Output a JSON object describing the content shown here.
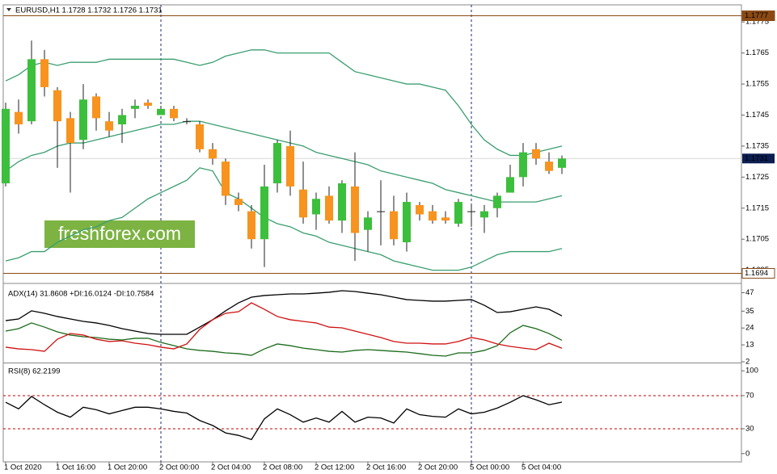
{
  "chart_data": [
    {
      "type": "candlestick",
      "title": "EURUSD,H1  1.1728 1.1732 1.1726 1.1731",
      "categories": [
        "1 Oct 2020",
        null,
        null,
        null,
        "1 Oct 16:00",
        null,
        null,
        null,
        "1 Oct 20:00",
        null,
        null,
        null,
        "2 Oct 00:00",
        null,
        null,
        null,
        "2 Oct 04:00",
        null,
        null,
        null,
        "2 Oct 08:00",
        null,
        null,
        null,
        "2 Oct 12:00",
        null,
        null,
        null,
        "2 Oct 16:00",
        null,
        null,
        null,
        "2 Oct 20:00",
        null,
        null,
        null,
        "5 Oct 00:00",
        null,
        null,
        null,
        "5 Oct 04:00",
        null,
        null,
        null
      ],
      "open": [
        1.1723,
        1.1746,
        1.1743,
        1.1763,
        1.1753,
        1.1744,
        1.1737,
        1.1751,
        1.1743,
        1.1742,
        1.1747,
        1.1749,
        1.1745,
        1.1747,
        1.1743,
        1.1742,
        1.1734,
        1.173,
        1.1718,
        1.1714,
        1.1705,
        1.1723,
        1.1735,
        1.1721,
        1.1713,
        1.1719,
        1.1711,
        1.1722,
        1.1708,
        1.1714,
        1.1714,
        1.1704,
        1.1716,
        1.1714,
        1.1712,
        1.171,
        1.1714,
        1.1712,
        1.1715,
        1.172,
        1.1725,
        1.1734,
        1.173,
        1.1728
      ],
      "high": [
        1.1749,
        1.175,
        1.1769,
        1.1766,
        1.1754,
        1.1746,
        1.1755,
        1.1752,
        1.1746,
        1.1747,
        1.175,
        1.175,
        1.1748,
        1.1748,
        1.1744,
        1.1743,
        1.1736,
        1.1731,
        1.172,
        1.1716,
        1.1729,
        1.1737,
        1.174,
        1.173,
        1.172,
        1.1722,
        1.1724,
        1.1733,
        1.1714,
        1.1724,
        1.1719,
        1.172,
        1.1717,
        1.1716,
        1.1714,
        1.1718,
        1.1716,
        1.1716,
        1.172,
        1.1729,
        1.1736,
        1.1736,
        1.1733,
        1.1732
      ],
      "low": [
        1.1722,
        1.1739,
        1.1742,
        1.1751,
        1.1728,
        1.172,
        1.1734,
        1.174,
        1.1738,
        1.1736,
        1.1744,
        1.1747,
        1.1745,
        1.1743,
        1.1742,
        1.1733,
        1.1729,
        1.1716,
        1.1714,
        1.1702,
        1.1696,
        1.172,
        1.1719,
        1.171,
        1.1708,
        1.171,
        1.1707,
        1.1698,
        1.1701,
        1.1703,
        1.1703,
        1.1701,
        1.1711,
        1.171,
        1.171,
        1.1709,
        1.1709,
        1.1707,
        1.1712,
        1.172,
        1.1722,
        1.1729,
        1.1726,
        1.1726
      ],
      "close": [
        1.1747,
        1.1742,
        1.1763,
        1.1754,
        1.1743,
        1.1736,
        1.175,
        1.1744,
        1.174,
        1.1745,
        1.1748,
        1.1748,
        1.1747,
        1.1744,
        1.1743,
        1.1734,
        1.1731,
        1.1719,
        1.1716,
        1.1705,
        1.1722,
        1.1736,
        1.1722,
        1.1712,
        1.1718,
        1.1711,
        1.1723,
        1.1707,
        1.1712,
        1.1714,
        1.1705,
        1.1717,
        1.1713,
        1.1711,
        1.1711,
        1.1717,
        1.1714,
        1.1714,
        1.1719,
        1.1725,
        1.1733,
        1.1731,
        1.1727,
        1.1731
      ],
      "up_color": "#3cbf3c",
      "down_color": "#f7931e",
      "wick_color": "#222222",
      "lines": [
        {
          "color": "#3a9e70",
          "values": [
            1.1756,
            1.1758,
            1.1761,
            1.1762,
            1.1761,
            1.1762,
            1.1762,
            1.1762,
            1.1763,
            1.1763,
            1.1763,
            1.1763,
            1.1763,
            1.1763,
            1.1762,
            1.1761,
            1.1762,
            1.1764,
            1.1765,
            1.1766,
            1.1766,
            1.1765,
            1.1765,
            1.1765,
            1.1765,
            1.1765,
            1.1762,
            1.1759,
            1.1758,
            1.1757,
            1.1756,
            1.1755,
            1.1755,
            1.1754,
            1.1753,
            1.1748,
            1.1742,
            1.1737,
            1.1734,
            1.1732,
            1.1732,
            1.1733,
            1.1734,
            1.1735
          ]
        },
        {
          "color": "#3a9e70",
          "values": [
            1.1727,
            1.173,
            1.1732,
            1.1733,
            1.1735,
            1.1736,
            1.1736,
            1.1737,
            1.1738,
            1.1739,
            1.174,
            1.1741,
            1.1742,
            1.1742,
            1.1743,
            1.1743,
            1.1742,
            1.1741,
            1.174,
            1.1739,
            1.1738,
            1.1737,
            1.1736,
            1.1735,
            1.1733,
            1.1732,
            1.1731,
            1.173,
            1.1729,
            1.1727,
            1.1726,
            1.1725,
            1.1724,
            1.1723,
            1.1721,
            1.172,
            1.1719,
            1.1718,
            1.1717,
            1.1717,
            1.1717,
            1.1717,
            1.1718,
            1.1719
          ]
        },
        {
          "color": "#3a9e70",
          "values": [
            1.1698,
            1.1699,
            1.1701,
            1.1701,
            1.1704,
            1.1706,
            1.1708,
            1.1709,
            1.1711,
            1.1712,
            1.1715,
            1.1718,
            1.172,
            1.1722,
            1.1724,
            1.1728,
            1.1727,
            1.172,
            1.1718,
            1.1715,
            1.1712,
            1.171,
            1.1709,
            1.1707,
            1.1706,
            1.1704,
            1.1703,
            1.1702,
            1.1701,
            1.17,
            1.1698,
            1.1697,
            1.1696,
            1.1695,
            1.1695,
            1.1695,
            1.1696,
            1.1698,
            1.17,
            1.1701,
            1.1701,
            1.1701,
            1.1701,
            1.1702
          ]
        }
      ],
      "ylim": [
        1.1691,
        1.178
      ],
      "yticks": [
        1.1775,
        1.1765,
        1.1755,
        1.1745,
        1.1735,
        1.1725,
        1.1715,
        1.1705,
        1.1695
      ],
      "levels": [
        1.1777,
        1.1694
      ],
      "level_color": "#8b4a14",
      "level_tags": true,
      "last_price": 1.1731,
      "last_price_color": "#0b1d51",
      "watermark": "freshforex.com"
    },
    {
      "type": "line",
      "title": "ADX(14) 31.8608 +DI:16.0124 -DI:10.7584",
      "series": [
        {
          "color": "#000000",
          "values": [
            28.8,
            29.9,
            35.2,
            33.6,
            31.5,
            29.9,
            28.3,
            27.3,
            25.7,
            23.6,
            22.0,
            20.4,
            19.9,
            19.9,
            19.9,
            24.6,
            29.4,
            35.2,
            40.4,
            44.1,
            45.2,
            45.7,
            46.2,
            46.2,
            46.7,
            47.3,
            48.3,
            47.8,
            46.7,
            45.7,
            44.1,
            42.5,
            42.0,
            41.5,
            41.5,
            42.0,
            42.5,
            38.8,
            34.1,
            34.6,
            36.2,
            37.8,
            36.2,
            31.9
          ]
        },
        {
          "color": "#1a6b1a",
          "values": [
            22.0,
            23.6,
            27.3,
            24.6,
            21.5,
            19.4,
            18.3,
            17.8,
            16.7,
            16.2,
            17.3,
            17.3,
            14.6,
            12.5,
            10.4,
            9.4,
            8.8,
            7.8,
            7.3,
            6.2,
            10.4,
            13.6,
            12.5,
            10.9,
            9.9,
            8.8,
            8.3,
            9.4,
            9.9,
            9.4,
            8.8,
            8.3,
            7.3,
            6.2,
            5.7,
            7.8,
            7.8,
            9.4,
            12.5,
            20.9,
            25.7,
            23.6,
            20.4,
            16.0
          ]
        },
        {
          "color": "#d01010",
          "values": [
            11.5,
            10.4,
            9.9,
            8.8,
            16.7,
            20.4,
            19.4,
            16.7,
            15.2,
            15.7,
            14.1,
            13.1,
            11.5,
            10.4,
            13.6,
            23.1,
            29.4,
            33.6,
            34.6,
            40.4,
            36.2,
            31.5,
            29.4,
            28.3,
            27.3,
            24.6,
            24.1,
            22.0,
            19.9,
            17.8,
            15.2,
            14.1,
            14.1,
            13.6,
            13.6,
            15.2,
            17.8,
            16.2,
            13.6,
            12.0,
            10.9,
            9.9,
            14.1,
            10.8
          ]
        }
      ],
      "ylim": [
        2,
        52
      ],
      "yticks": [
        47,
        35,
        24,
        13,
        2
      ]
    },
    {
      "type": "line",
      "title": "RSI(8) 62.2199",
      "series": [
        {
          "color": "#000000",
          "values": [
            62,
            54,
            69,
            59,
            50,
            44,
            56,
            53,
            48,
            52,
            56,
            56,
            54,
            51,
            49,
            40,
            34,
            25,
            22,
            17,
            42,
            54,
            47,
            38,
            43,
            38,
            51,
            38,
            44,
            43,
            37,
            54,
            47,
            45,
            44,
            54,
            48,
            50,
            55,
            62,
            70,
            65,
            59,
            62.2
          ]
        }
      ],
      "ylim": [
        -10,
        108
      ],
      "yticks": [
        100,
        70,
        30,
        0
      ],
      "levels": [
        70,
        30
      ],
      "level_color": "#c00000",
      "level_dashed": true
    }
  ]
}
